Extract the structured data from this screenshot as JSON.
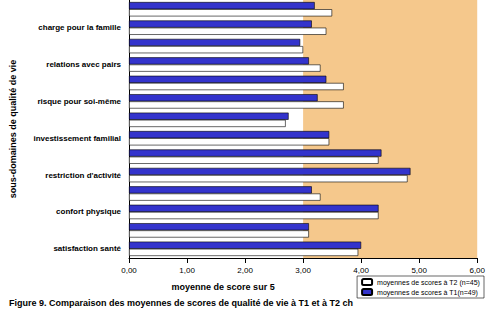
{
  "chart_data": {
    "type": "bar",
    "orientation": "horizontal",
    "caption": "Figure 9. Comparaison des moyennes de scores de qualité de vie à T1 et à T2 ch",
    "x_label": "moyenne de score sur 5",
    "y_label": "sous-domaines de qualité de vie",
    "categories": [
      "satisfaction santé",
      null,
      "confort physique",
      null,
      "restriction d'activité",
      null,
      "investissement familial",
      null,
      "risque pour soi-même",
      null,
      "relations avec pairs",
      null,
      "charge pour la famille",
      null
    ],
    "series": [
      {
        "name": "moyennes de scores à T2 (n=45)",
        "color": "#ffffff",
        "values": [
          3.95,
          3.1,
          4.3,
          3.3,
          4.8,
          4.3,
          3.45,
          2.7,
          3.7,
          3.7,
          3.3,
          3.0,
          3.4,
          3.5
        ]
      },
      {
        "name": "moyennes de scores à T1(n=49)",
        "color": "#3333cc",
        "values": [
          4.0,
          3.1,
          4.3,
          3.15,
          4.85,
          4.35,
          3.45,
          2.75,
          3.25,
          3.4,
          3.1,
          2.95,
          3.15,
          3.2
        ]
      }
    ],
    "shaded_range": [
      3,
      6
    ],
    "xlim": [
      0,
      6
    ],
    "xticks": [
      {
        "value": 0,
        "label": "0,00"
      },
      {
        "value": 1,
        "label": "1,00"
      },
      {
        "value": 2,
        "label": "2,00"
      },
      {
        "value": 3,
        "label": "3,00"
      },
      {
        "value": 4,
        "label": "4,00"
      },
      {
        "value": 5,
        "label": "5,00"
      },
      {
        "value": 6,
        "label": "6,00"
      }
    ],
    "grid": false,
    "legend": "bottom-right"
  }
}
